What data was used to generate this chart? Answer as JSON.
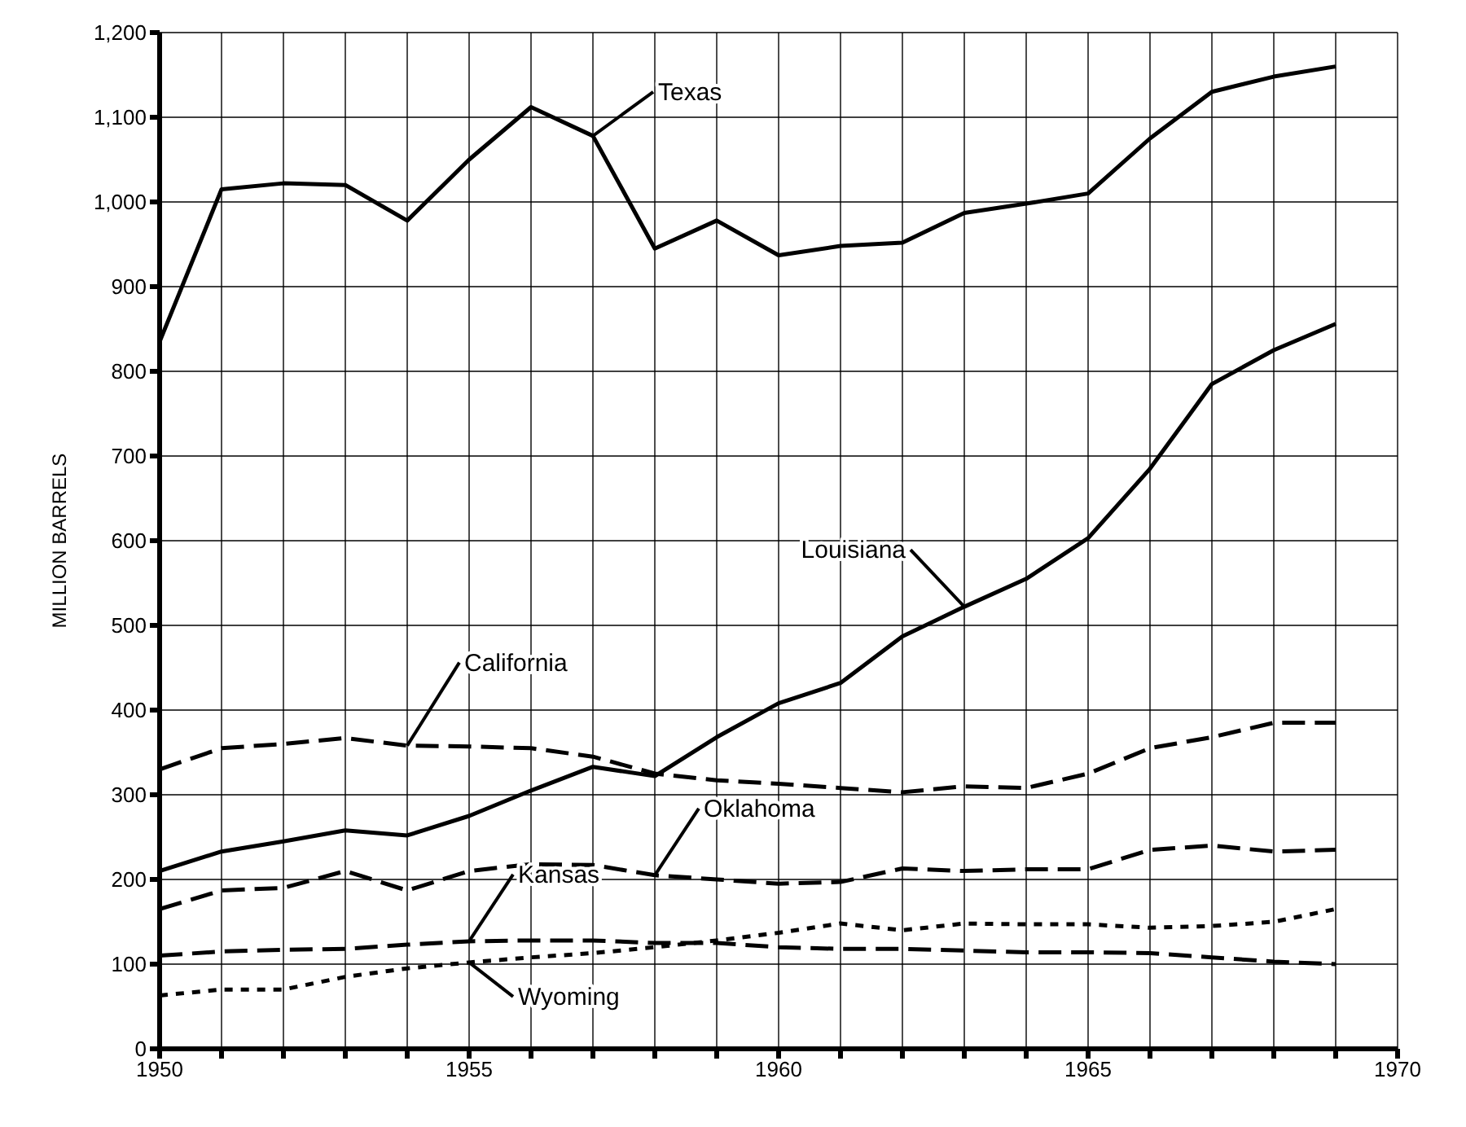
{
  "chart_data": {
    "type": "line",
    "ylabel": "MILLION BARRELS",
    "x": [
      1950,
      1951,
      1952,
      1953,
      1954,
      1955,
      1956,
      1957,
      1958,
      1959,
      1960,
      1961,
      1962,
      1963,
      1964,
      1965,
      1966,
      1967,
      1968,
      1969
    ],
    "series": [
      {
        "name": "Texas",
        "color": "#000000",
        "line_style": "solid",
        "values": [
          835,
          1015,
          1022,
          1020,
          978,
          1050,
          1112,
          1078,
          945,
          978,
          937,
          948,
          952,
          987,
          998,
          1010,
          1075,
          1130,
          1148,
          1160
        ]
      },
      {
        "name": "Louisiana",
        "color": "#000000",
        "line_style": "solid",
        "values": [
          210,
          233,
          245,
          258,
          252,
          275,
          305,
          333,
          322,
          368,
          408,
          432,
          487,
          522,
          555,
          603,
          685,
          785,
          825,
          856
        ]
      },
      {
        "name": "California",
        "color": "#000000",
        "line_style": "dashed",
        "values": [
          330,
          355,
          360,
          367,
          358,
          357,
          355,
          345,
          325,
          317,
          313,
          308,
          303,
          310,
          308,
          325,
          355,
          368,
          385,
          385
        ]
      },
      {
        "name": "Oklahoma",
        "color": "#000000",
        "line_style": "dashed",
        "values": [
          165,
          187,
          190,
          210,
          187,
          210,
          218,
          217,
          205,
          200,
          195,
          197,
          213,
          210,
          212,
          212,
          235,
          240,
          233,
          235
        ]
      },
      {
        "name": "Kansas",
        "color": "#000000",
        "line_style": "dashed",
        "values": [
          110,
          115,
          117,
          118,
          123,
          127,
          128,
          128,
          125,
          125,
          120,
          118,
          118,
          116,
          114,
          114,
          113,
          108,
          103,
          100
        ]
      },
      {
        "name": "Wyoming",
        "color": "#000000",
        "line_style": "dotted",
        "values": [
          63,
          70,
          70,
          85,
          95,
          102,
          108,
          113,
          120,
          128,
          137,
          148,
          140,
          148,
          147,
          147,
          143,
          145,
          150,
          165
        ]
      }
    ],
    "xlim": [
      1950,
      1970
    ],
    "xticks": [
      1950,
      {
        "value": 1951,
        "label": null
      },
      {
        "value": 1952,
        "label": null
      },
      {
        "value": 1953,
        "label": null
      },
      {
        "value": 1954,
        "label": null
      },
      1955,
      {
        "value": 1956,
        "label": null
      },
      {
        "value": 1957,
        "label": null
      },
      {
        "value": 1958,
        "label": null
      },
      {
        "value": 1959,
        "label": null
      },
      1960,
      {
        "value": 1961,
        "label": null
      },
      {
        "value": 1962,
        "label": null
      },
      {
        "value": 1963,
        "label": null
      },
      {
        "value": 1964,
        "label": null
      },
      1965,
      {
        "value": 1966,
        "label": null
      },
      {
        "value": 1967,
        "label": null
      },
      {
        "value": 1968,
        "label": null
      },
      {
        "value": 1969,
        "label": null
      },
      1970
    ],
    "ylim": [
      0,
      1200
    ],
    "yticks": [
      0,
      100,
      200,
      300,
      400,
      500,
      600,
      700,
      800,
      900,
      {
        "value": 1000,
        "label": "1,000"
      },
      {
        "value": 1100,
        "label": "1,100"
      },
      {
        "value": 1200,
        "label": "1,200"
      }
    ],
    "grid": true,
    "legend": false,
    "marker": "none"
  }
}
